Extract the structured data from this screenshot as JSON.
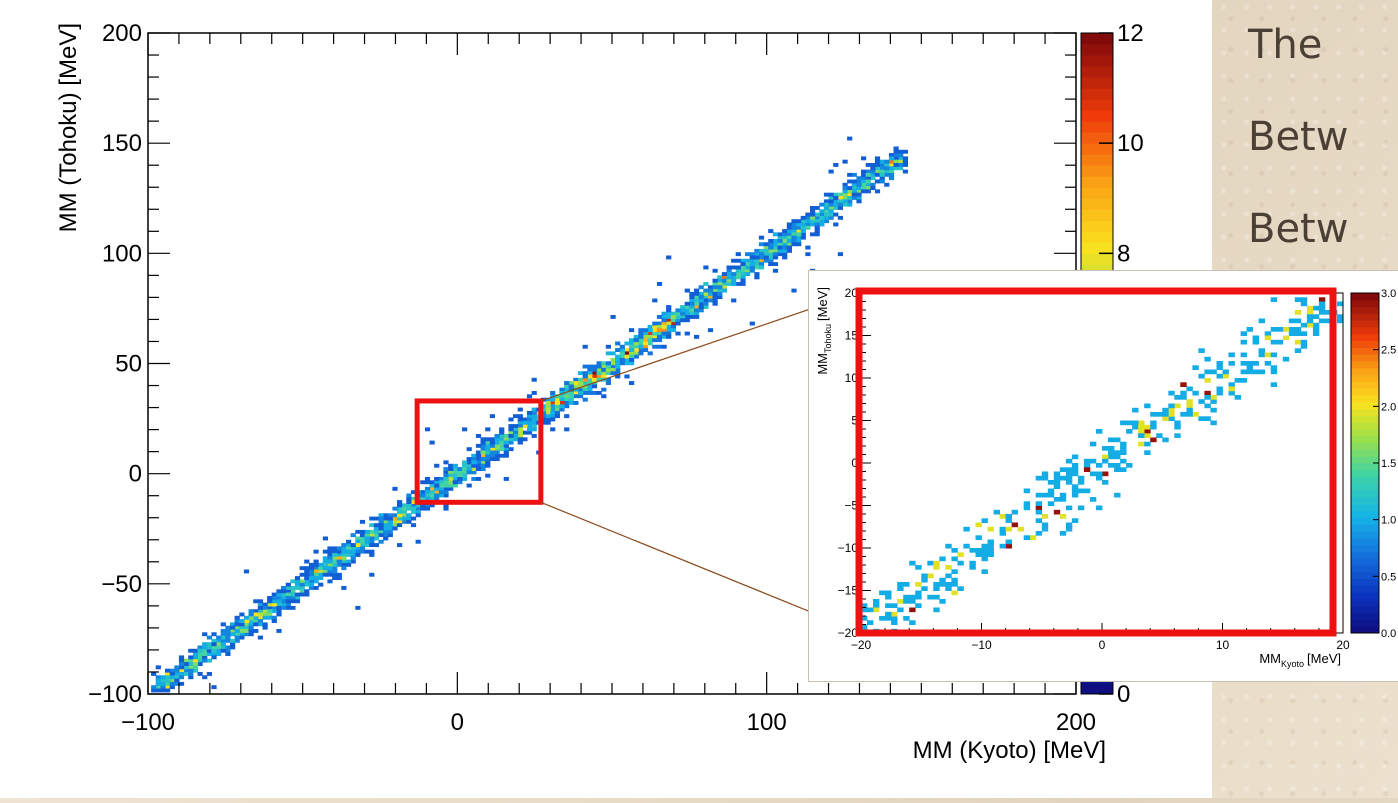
{
  "headline": [
    "The",
    "Betw",
    "Betw"
  ],
  "chart_data": [
    {
      "type": "heatmap",
      "xlabel": "MM (Kyoto) [MeV]",
      "ylabel": "MM (Tohoku) [MeV]",
      "xlim": [
        -100,
        200
      ],
      "ylim": [
        -100,
        200
      ],
      "x_ticks": [
        "−100",
        "0",
        "100",
        "200"
      ],
      "y_ticks": [
        "−100",
        "−50",
        "0",
        "50",
        "100",
        "150",
        "200"
      ],
      "z_ticks": [
        "0",
        "8",
        "10",
        "12"
      ],
      "zlim": [
        0,
        12
      ],
      "colormap": "kBird",
      "trend": "strong linear correlation along y = x from -100 to 140 MeV",
      "zoom_box": {
        "x": [
          -13,
          27
        ],
        "y": [
          -13,
          33
        ]
      }
    },
    {
      "type": "heatmap",
      "xlabel_main": "MM",
      "xlabel_sub": "Kyoto",
      "xlabel_unit": "[MeV]",
      "ylabel_main": "MM",
      "ylabel_sub": "Tohoku",
      "ylabel_unit": "[MeV]",
      "xlim": [
        -20,
        20
      ],
      "ylim": [
        -20,
        20
      ],
      "x_ticks": [
        "−20",
        "−10",
        "0",
        "10",
        "20"
      ],
      "y_ticks": [
        "−20",
        "−15",
        "−10",
        "−5",
        "0",
        "5",
        "10",
        "15",
        "20"
      ],
      "z_ticks": [
        "0.0",
        "0.5",
        "1.0",
        "1.5",
        "2.0",
        "2.5",
        "3.0"
      ],
      "zlim": [
        0,
        3
      ],
      "colormap": "kBird"
    }
  ]
}
